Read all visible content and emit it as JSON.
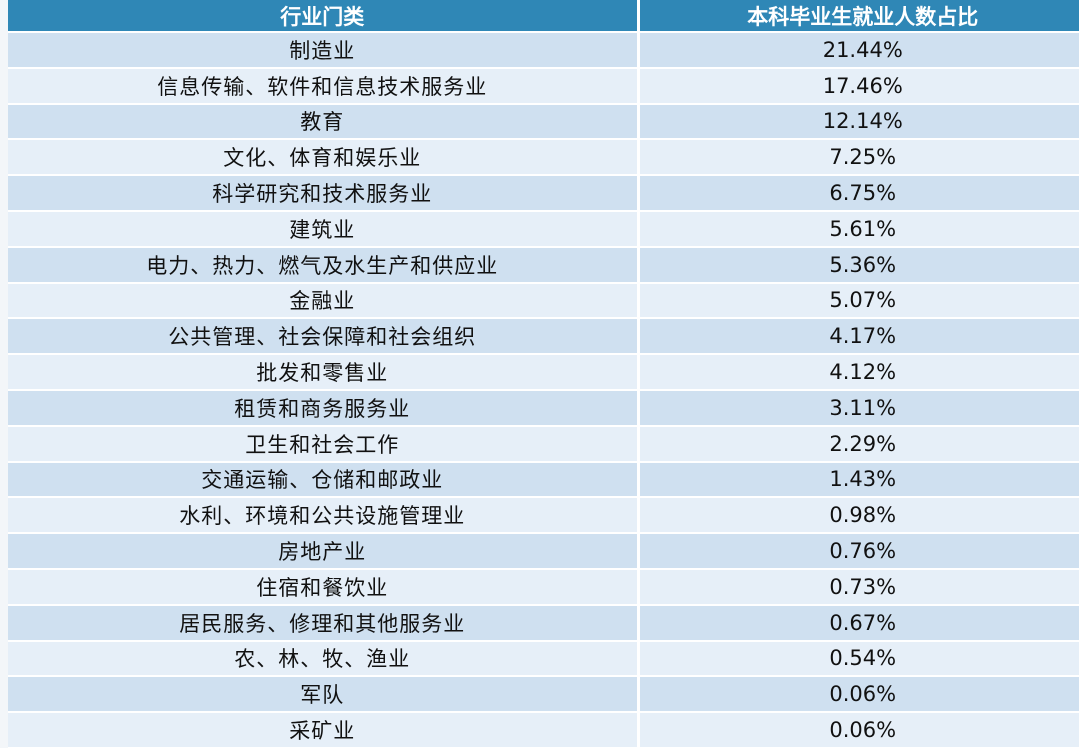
{
  "table": {
    "headers": [
      "行业门类",
      "本科毕业生就业人数占比"
    ],
    "rows": [
      [
        "制造业",
        "21.44%"
      ],
      [
        "信息传输、软件和信息技术服务业",
        "17.46%"
      ],
      [
        "教育",
        "12.14%"
      ],
      [
        "文化、体育和娱乐业",
        "7.25%"
      ],
      [
        "科学研究和技术服务业",
        "6.75%"
      ],
      [
        "建筑业",
        "5.61%"
      ],
      [
        "电力、热力、燃气及水生产和供应业",
        "5.36%"
      ],
      [
        "金融业",
        "5.07%"
      ],
      [
        "公共管理、社会保障和社会组织",
        "4.17%"
      ],
      [
        "批发和零售业",
        "4.12%"
      ],
      [
        "租赁和商务服务业",
        "3.11%"
      ],
      [
        "卫生和社会工作",
        "2.29%"
      ],
      [
        "交通运输、仓储和邮政业",
        "1.43%"
      ],
      [
        "水利、环境和公共设施管理业",
        "0.98%"
      ],
      [
        "房地产业",
        "0.76%"
      ],
      [
        "住宿和餐饮业",
        "0.73%"
      ],
      [
        "居民服务、修理和其他服务业",
        "0.67%"
      ],
      [
        "农、林、牧、渔业",
        "0.54%"
      ],
      [
        "军队",
        "0.06%"
      ],
      [
        "采矿业",
        "0.06%"
      ]
    ]
  },
  "colors": {
    "header_bg": "#2f87b6",
    "row_odd": "#cfe0f0",
    "row_even": "#e6eff8"
  }
}
